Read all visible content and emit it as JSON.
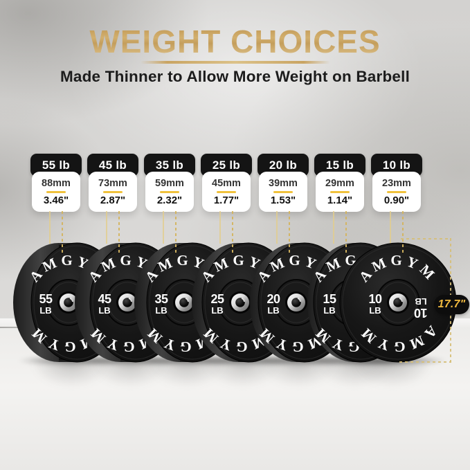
{
  "header": {
    "title": "WEIGHT CHOICES",
    "subtitle": "Made Thinner to Allow More Weight on Barbell"
  },
  "brand_text": "AMGYM",
  "diameter_label": "17.7\"",
  "plates": [
    {
      "label": "55 lb",
      "weight": "55",
      "unit": "LB",
      "mm": "88mm",
      "inch": "3.46\""
    },
    {
      "label": "45 lb",
      "weight": "45",
      "unit": "LB",
      "mm": "73mm",
      "inch": "2.87\""
    },
    {
      "label": "35 lb",
      "weight": "35",
      "unit": "LB",
      "mm": "59mm",
      "inch": "2.32\""
    },
    {
      "label": "25 lb",
      "weight": "25",
      "unit": "LB",
      "mm": "45mm",
      "inch": "1.77\""
    },
    {
      "label": "20 lb",
      "weight": "20",
      "unit": "LB",
      "mm": "39mm",
      "inch": "1.53\""
    },
    {
      "label": "15 lb",
      "weight": "15",
      "unit": "LB",
      "mm": "29mm",
      "inch": "1.14\""
    },
    {
      "label": "10 lb",
      "weight": "10",
      "unit": "LB",
      "mm": "23mm",
      "inch": "0.90\""
    }
  ],
  "colors": {
    "title_gold_dark": "#bb914c",
    "title_gold_light": "#e2c995",
    "divider_yellow": "#f0c23c",
    "pointer_gold": "#d4b45e",
    "plate_black": "#151515",
    "pill_bg": "#0d0d0d",
    "pill_text": "#efb93f"
  }
}
